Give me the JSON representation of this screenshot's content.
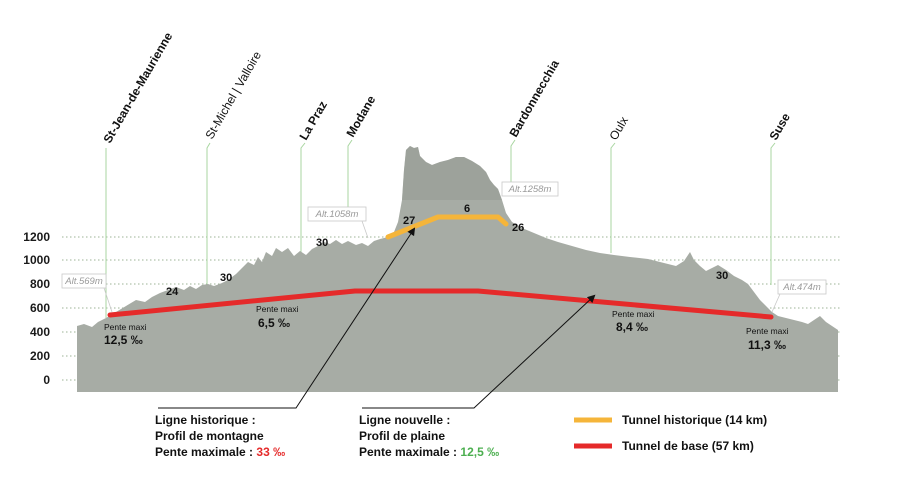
{
  "y_axis": {
    "ticks": [
      "1200",
      "1000",
      "800",
      "600",
      "400",
      "200",
      "0"
    ]
  },
  "stations": [
    {
      "name": "St-Jean-de-Maurienne",
      "bold": true
    },
    {
      "name": "St-Michel | Valloire",
      "bold": false
    },
    {
      "name": "La Praz",
      "bold": true
    },
    {
      "name": "Modane",
      "bold": true
    },
    {
      "name": "Bardonnecchia",
      "bold": true
    },
    {
      "name": "Oulx",
      "bold": false
    },
    {
      "name": "Suse",
      "bold": true
    }
  ],
  "altitudes": [
    "Alt.569m",
    "Alt.1058m",
    "Alt.1258m",
    "Alt.474m"
  ],
  "grades": [
    "24",
    "30",
    "30",
    "27",
    "6",
    "26",
    "30"
  ],
  "pentes": [
    {
      "label": "Pente maxi",
      "value": "12,5 ‰"
    },
    {
      "label": "Pente maxi",
      "value": "6,5 ‰"
    },
    {
      "label": "Pente maxi",
      "value": "8,4 ‰"
    },
    {
      "label": "Pente maxi",
      "value": "11,3 ‰"
    }
  ],
  "annotations": {
    "historic": {
      "line1": "Ligne historique :",
      "line2": "Profil de montagne",
      "line3_prefix": "Pente maximale : ",
      "line3_value": "33 ‰"
    },
    "new": {
      "line1": "Ligne nouvelle :",
      "line2": "Profil de plaine",
      "line3_prefix": "Pente maximale : ",
      "line3_value": "12,5 ‰"
    }
  },
  "legend": [
    {
      "label": "Tunnel historique (14 km)",
      "color": "#f5b53a"
    },
    {
      "label": "Tunnel de base (57 km)",
      "color": "#e52a2a"
    }
  ],
  "colors": {
    "terrain": "#a7aca5",
    "terrain_dark": "#8f958d",
    "grid": "#7d9a74",
    "station_line": "#a8d6a0",
    "historic_tunnel": "#f5b53a",
    "base_tunnel": "#e52a2a",
    "historic_value": "#e52a2a",
    "new_value": "#4caf50"
  }
}
